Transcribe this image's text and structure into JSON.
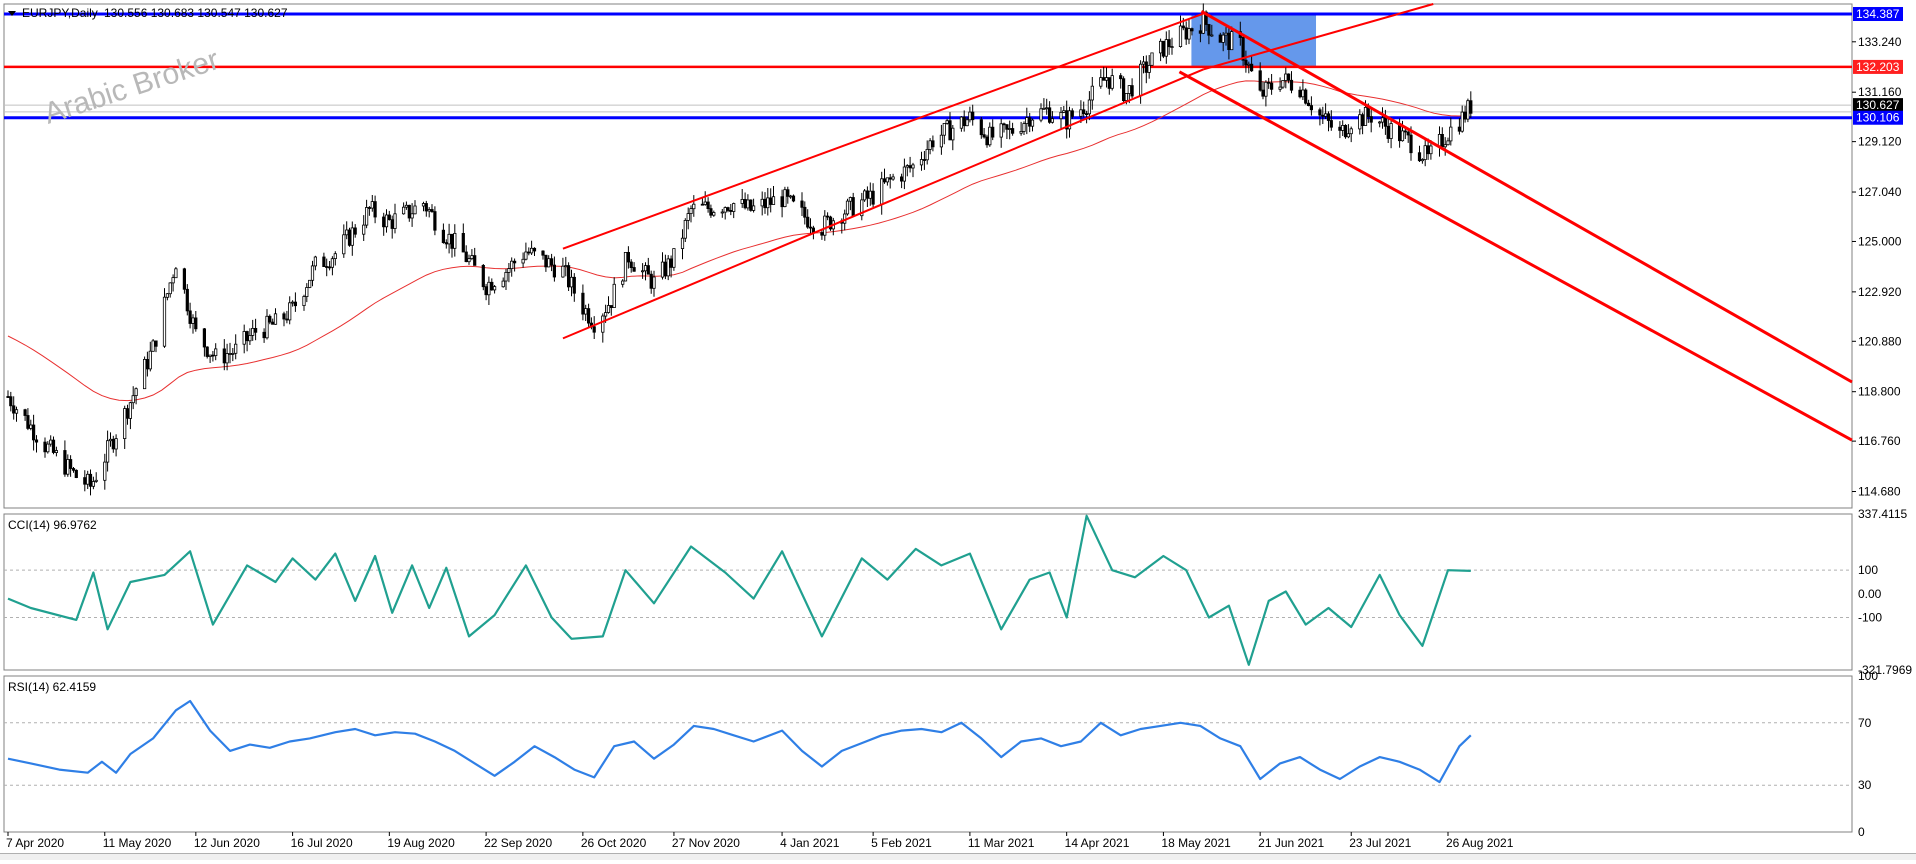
{
  "header": {
    "symbol": "EURJPY,Daily",
    "quote": "130.556 130.683 130.547 130.627"
  },
  "watermark": "Arabic Broker",
  "colors": {
    "candle": "#000000",
    "moving_average": "#e83030",
    "channel": "#ff0000",
    "support_line": "#0000ff",
    "resistance_line": "#ff0000",
    "zone": "#4a86e8",
    "cci": "#20a090",
    "rsi": "#2f7fe6",
    "grid_dotted": "#b0b0b0"
  },
  "indicators": {
    "cci_label": "CCI(14) 96.9762",
    "rsi_label": "RSI(14) 62.4159"
  },
  "price_tags": [
    {
      "value": "134.387",
      "color": "#0000ff"
    },
    {
      "value": "132.203",
      "color": "#ff2020"
    },
    {
      "value": "130.627",
      "color": "#000000"
    },
    {
      "value": "130.106",
      "color": "#0000ff"
    }
  ],
  "chart_data": [
    {
      "type": "candlestick",
      "symbol": "EURJPY",
      "timeframe": "Daily",
      "y_ticks": [
        "134.387",
        "133.240",
        "132.203",
        "131.160",
        "130.627",
        "130.106",
        "129.120",
        "127.040",
        "125.000",
        "122.920",
        "120.880",
        "118.800",
        "116.760",
        "114.680"
      ],
      "ylim": [
        114.0,
        134.8
      ],
      "x_ticks": [
        "7 Apr 2020",
        "11 May 2020",
        "12 Jun 2020",
        "16 Jul 2020",
        "19 Aug 2020",
        "22 Sep 2020",
        "26 Oct 2020",
        "27 Nov 2020",
        "4 Jan 2021",
        "5 Feb 2021",
        "11 Mar 2021",
        "14 Apr 2021",
        "18 May 2021",
        "21 Jun 2021",
        "23 Jul 2021",
        "26 Aug 2021"
      ],
      "close_path": [
        [
          "7 Apr 2020",
          118.6
        ],
        [
          "20 Apr 2020",
          116.6
        ],
        [
          "1 May 2020",
          115.3
        ],
        [
          "6 May 2020",
          114.9
        ],
        [
          "11 May 2020",
          116.1
        ],
        [
          "20 May 2020",
          118.4
        ],
        [
          "28 May 2020",
          120.6
        ],
        [
          "5 Jun 2020",
          124.2
        ],
        [
          "12 Jun 2020",
          121.2
        ],
        [
          "19 Jun 2020",
          120.2
        ],
        [
          "26 Jun 2020",
          120.5
        ],
        [
          "3 Jul 2020",
          121.3
        ],
        [
          "10 Jul 2020",
          121.6
        ],
        [
          "16 Jul 2020",
          122.2
        ],
        [
          "24 Jul 2020",
          124.0
        ],
        [
          "31 Jul 2020",
          124.5
        ],
        [
          "7 Aug 2020",
          125.5
        ],
        [
          "12 Aug 2020",
          126.3
        ],
        [
          "19 Aug 2020",
          125.8
        ],
        [
          "26 Aug 2020",
          126.2
        ],
        [
          "31 Aug 2020",
          126.6
        ],
        [
          "7 Sep 2020",
          125.4
        ],
        [
          "14 Sep 2020",
          124.5
        ],
        [
          "22 Sep 2020",
          123.2
        ],
        [
          "29 Sep 2020",
          123.8
        ],
        [
          "6 Oct 2020",
          124.6
        ],
        [
          "12 Oct 2020",
          124.2
        ],
        [
          "19 Oct 2020",
          123.8
        ],
        [
          "26 Oct 2020",
          122.3
        ],
        [
          "30 Oct 2020",
          121.7
        ],
        [
          "5 Nov 2020",
          122.6
        ],
        [
          "11 Nov 2020",
          124.4
        ],
        [
          "17 Nov 2020",
          123.6
        ],
        [
          "20 Nov 2020",
          123.3
        ],
        [
          "27 Nov 2020",
          124.3
        ],
        [
          "3 Dec 2020",
          126.3
        ],
        [
          "10 Dec 2020",
          126.4
        ],
        [
          "17 Dec 2020",
          126.6
        ],
        [
          "24 Dec 2020",
          126.3
        ],
        [
          "4 Jan 2021",
          126.8
        ],
        [
          "11 Jan 2021",
          126.1
        ],
        [
          "18 Jan 2021",
          125.6
        ],
        [
          "25 Jan 2021",
          126.2
        ],
        [
          "5 Feb 2021",
          126.9
        ],
        [
          "12 Feb 2021",
          127.6
        ],
        [
          "19 Feb 2021",
          128.1
        ],
        [
          "26 Feb 2021",
          129.2
        ],
        [
          "5 Mar 2021",
          129.7
        ],
        [
          "11 Mar 2021",
          130.1
        ],
        [
          "18 Mar 2021",
          129.3
        ],
        [
          "25 Mar 2021",
          129.5
        ],
        [
          "1 Apr 2021",
          130.2
        ],
        [
          "7 Apr 2021",
          130.4
        ],
        [
          "14 Apr 2021",
          130.0
        ],
        [
          "21 Apr 2021",
          130.7
        ],
        [
          "28 Apr 2021",
          131.8
        ],
        [
          "5 May 2021",
          131.1
        ],
        [
          "12 May 2021",
          132.2
        ],
        [
          "18 May 2021",
          133.0
        ],
        [
          "25 May 2021",
          133.6
        ],
        [
          "1 Jun 2021",
          134.1
        ],
        [
          "7 Jun 2021",
          133.4
        ],
        [
          "14 Jun 2021",
          133.1
        ],
        [
          "21 Jun 2021",
          131.0
        ],
        [
          "28 Jun 2021",
          131.7
        ],
        [
          "5 Jul 2021",
          131.4
        ],
        [
          "12 Jul 2021",
          130.2
        ],
        [
          "19 Jul 2021",
          129.4
        ],
        [
          "23 Jul 2021",
          130.0
        ],
        [
          "30 Jul 2021",
          130.2
        ],
        [
          "6 Aug 2021",
          129.6
        ],
        [
          "13 Aug 2021",
          129.1
        ],
        [
          "19 Aug 2021",
          128.4
        ],
        [
          "26 Aug 2021",
          129.5
        ],
        [
          "31 Aug 2021",
          130.1
        ],
        [
          "3 Sep 2021",
          130.6
        ]
      ]
    },
    {
      "type": "line",
      "name": "CCI(14)",
      "value": 96.9762,
      "y_ticks": [
        "337.4115",
        "100",
        "0.00",
        "-100",
        "-321.7969"
      ],
      "ylim": [
        -321.7969,
        337.4115
      ],
      "levels": [
        100,
        -100
      ],
      "values": [
        [
          "7 Apr 2020",
          -20
        ],
        [
          "15 Apr 2020",
          -60
        ],
        [
          "1 May 2020",
          -110
        ],
        [
          "7 May 2020",
          90
        ],
        [
          "12 May 2020",
          -150
        ],
        [
          "20 May 2020",
          50
        ],
        [
          "1 Jun 2020",
          80
        ],
        [
          "10 Jun 2020",
          180
        ],
        [
          "18 Jun 2020",
          -130
        ],
        [
          "30 Jun 2020",
          120
        ],
        [
          "10 Jul 2020",
          50
        ],
        [
          "16 Jul 2020",
          150
        ],
        [
          "24 Jul 2020",
          60
        ],
        [
          "31 Jul 2020",
          170
        ],
        [
          "7 Aug 2020",
          -30
        ],
        [
          "14 Aug 2020",
          160
        ],
        [
          "20 Aug 2020",
          -80
        ],
        [
          "27 Aug 2020",
          120
        ],
        [
          "2 Sep 2020",
          -60
        ],
        [
          "8 Sep 2020",
          110
        ],
        [
          "16 Sep 2020",
          -180
        ],
        [
          "25 Sep 2020",
          -90
        ],
        [
          "6 Oct 2020",
          120
        ],
        [
          "15 Oct 2020",
          -100
        ],
        [
          "22 Oct 2020",
          -190
        ],
        [
          "2 Nov 2020",
          -180
        ],
        [
          "10 Nov 2020",
          100
        ],
        [
          "20 Nov 2020",
          -40
        ],
        [
          "3 Dec 2020",
          200
        ],
        [
          "15 Dec 2020",
          90
        ],
        [
          "25 Dec 2020",
          -20
        ],
        [
          "4 Jan 2021",
          180
        ],
        [
          "18 Jan 2021",
          -180
        ],
        [
          "1 Feb 2021",
          150
        ],
        [
          "10 Feb 2021",
          60
        ],
        [
          "20 Feb 2021",
          190
        ],
        [
          "1 Mar 2021",
          120
        ],
        [
          "11 Mar 2021",
          170
        ],
        [
          "22 Mar 2021",
          -150
        ],
        [
          "1 Apr 2021",
          60
        ],
        [
          "8 Apr 2021",
          90
        ],
        [
          "14 Apr 2021",
          -100
        ],
        [
          "21 Apr 2021",
          330
        ],
        [
          "30 Apr 2021",
          100
        ],
        [
          "8 May 2021",
          70
        ],
        [
          "18 May 2021",
          160
        ],
        [
          "26 May 2021",
          100
        ],
        [
          "3 Jun 2021",
          -100
        ],
        [
          "10 Jun 2021",
          -50
        ],
        [
          "17 Jun 2021",
          -300
        ],
        [
          "24 Jun 2021",
          -30
        ],
        [
          "30 Jun 2021",
          10
        ],
        [
          "7 Jul 2021",
          -130
        ],
        [
          "15 Jul 2021",
          -60
        ],
        [
          "23 Jul 2021",
          -140
        ],
        [
          "2 Aug 2021",
          80
        ],
        [
          "9 Aug 2021",
          -90
        ],
        [
          "17 Aug 2021",
          -220
        ],
        [
          "26 Aug 2021",
          100
        ],
        [
          "3 Sep 2021",
          97
        ]
      ]
    },
    {
      "type": "line",
      "name": "RSI(14)",
      "value": 62.4159,
      "y_ticks": [
        "100",
        "70",
        "30",
        "0"
      ],
      "ylim": [
        0,
        100
      ],
      "levels": [
        70,
        30
      ],
      "values": [
        [
          "7 Apr 2020",
          47
        ],
        [
          "15 Apr 2020",
          44
        ],
        [
          "25 Apr 2020",
          40
        ],
        [
          "5 May 2020",
          38
        ],
        [
          "10 May 2020",
          45
        ],
        [
          "15 May 2020",
          38
        ],
        [
          "20 May 2020",
          50
        ],
        [
          "28 May 2020",
          60
        ],
        [
          "5 Jun 2020",
          78
        ],
        [
          "10 Jun 2020",
          84
        ],
        [
          "17 Jun 2020",
          65
        ],
        [
          "24 Jun 2020",
          52
        ],
        [
          "1 Jul 2020",
          56
        ],
        [
          "8 Jul 2020",
          54
        ],
        [
          "15 Jul 2020",
          58
        ],
        [
          "22 Jul 2020",
          60
        ],
        [
          "31 Jul 2020",
          64
        ],
        [
          "7 Aug 2020",
          66
        ],
        [
          "14 Aug 2020",
          62
        ],
        [
          "21 Aug 2020",
          64
        ],
        [
          "28 Aug 2020",
          63
        ],
        [
          "4 Sep 2020",
          58
        ],
        [
          "11 Sep 2020",
          52
        ],
        [
          "18 Sep 2020",
          44
        ],
        [
          "25 Sep 2020",
          36
        ],
        [
          "2 Oct 2020",
          45
        ],
        [
          "9 Oct 2020",
          55
        ],
        [
          "16 Oct 2020",
          48
        ],
        [
          "23 Oct 2020",
          40
        ],
        [
          "30 Oct 2020",
          35
        ],
        [
          "6 Nov 2020",
          55
        ],
        [
          "13 Nov 2020",
          58
        ],
        [
          "20 Nov 2020",
          47
        ],
        [
          "27 Nov 2020",
          56
        ],
        [
          "4 Dec 2020",
          68
        ],
        [
          "11 Dec 2020",
          66
        ],
        [
          "18 Dec 2020",
          62
        ],
        [
          "25 Dec 2020",
          58
        ],
        [
          "4 Jan 2021",
          65
        ],
        [
          "11 Jan 2021",
          52
        ],
        [
          "18 Jan 2021",
          42
        ],
        [
          "25 Jan 2021",
          52
        ],
        [
          "1 Feb 2021",
          57
        ],
        [
          "8 Feb 2021",
          62
        ],
        [
          "15 Feb 2021",
          65
        ],
        [
          "22 Feb 2021",
          66
        ],
        [
          "1 Mar 2021",
          64
        ],
        [
          "8 Mar 2021",
          70
        ],
        [
          "15 Mar 2021",
          60
        ],
        [
          "22 Mar 2021",
          48
        ],
        [
          "29 Mar 2021",
          58
        ],
        [
          "5 Apr 2021",
          60
        ],
        [
          "12 Apr 2021",
          55
        ],
        [
          "19 Apr 2021",
          58
        ],
        [
          "26 Apr 2021",
          70
        ],
        [
          "3 May 2021",
          62
        ],
        [
          "10 May 2021",
          66
        ],
        [
          "17 May 2021",
          68
        ],
        [
          "24 May 2021",
          70
        ],
        [
          "31 May 2021",
          68
        ],
        [
          "7 Jun 2021",
          60
        ],
        [
          "14 Jun 2021",
          55
        ],
        [
          "21 Jun 2021",
          34
        ],
        [
          "28 Jun 2021",
          44
        ],
        [
          "5 Jul 2021",
          48
        ],
        [
          "12 Jul 2021",
          40
        ],
        [
          "19 Jul 2021",
          34
        ],
        [
          "26 Jul 2021",
          42
        ],
        [
          "2 Aug 2021",
          48
        ],
        [
          "9 Aug 2021",
          45
        ],
        [
          "16 Aug 2021",
          40
        ],
        [
          "23 Aug 2021",
          32
        ],
        [
          "30 Aug 2021",
          55
        ],
        [
          "3 Sep 2021",
          62
        ]
      ]
    }
  ]
}
